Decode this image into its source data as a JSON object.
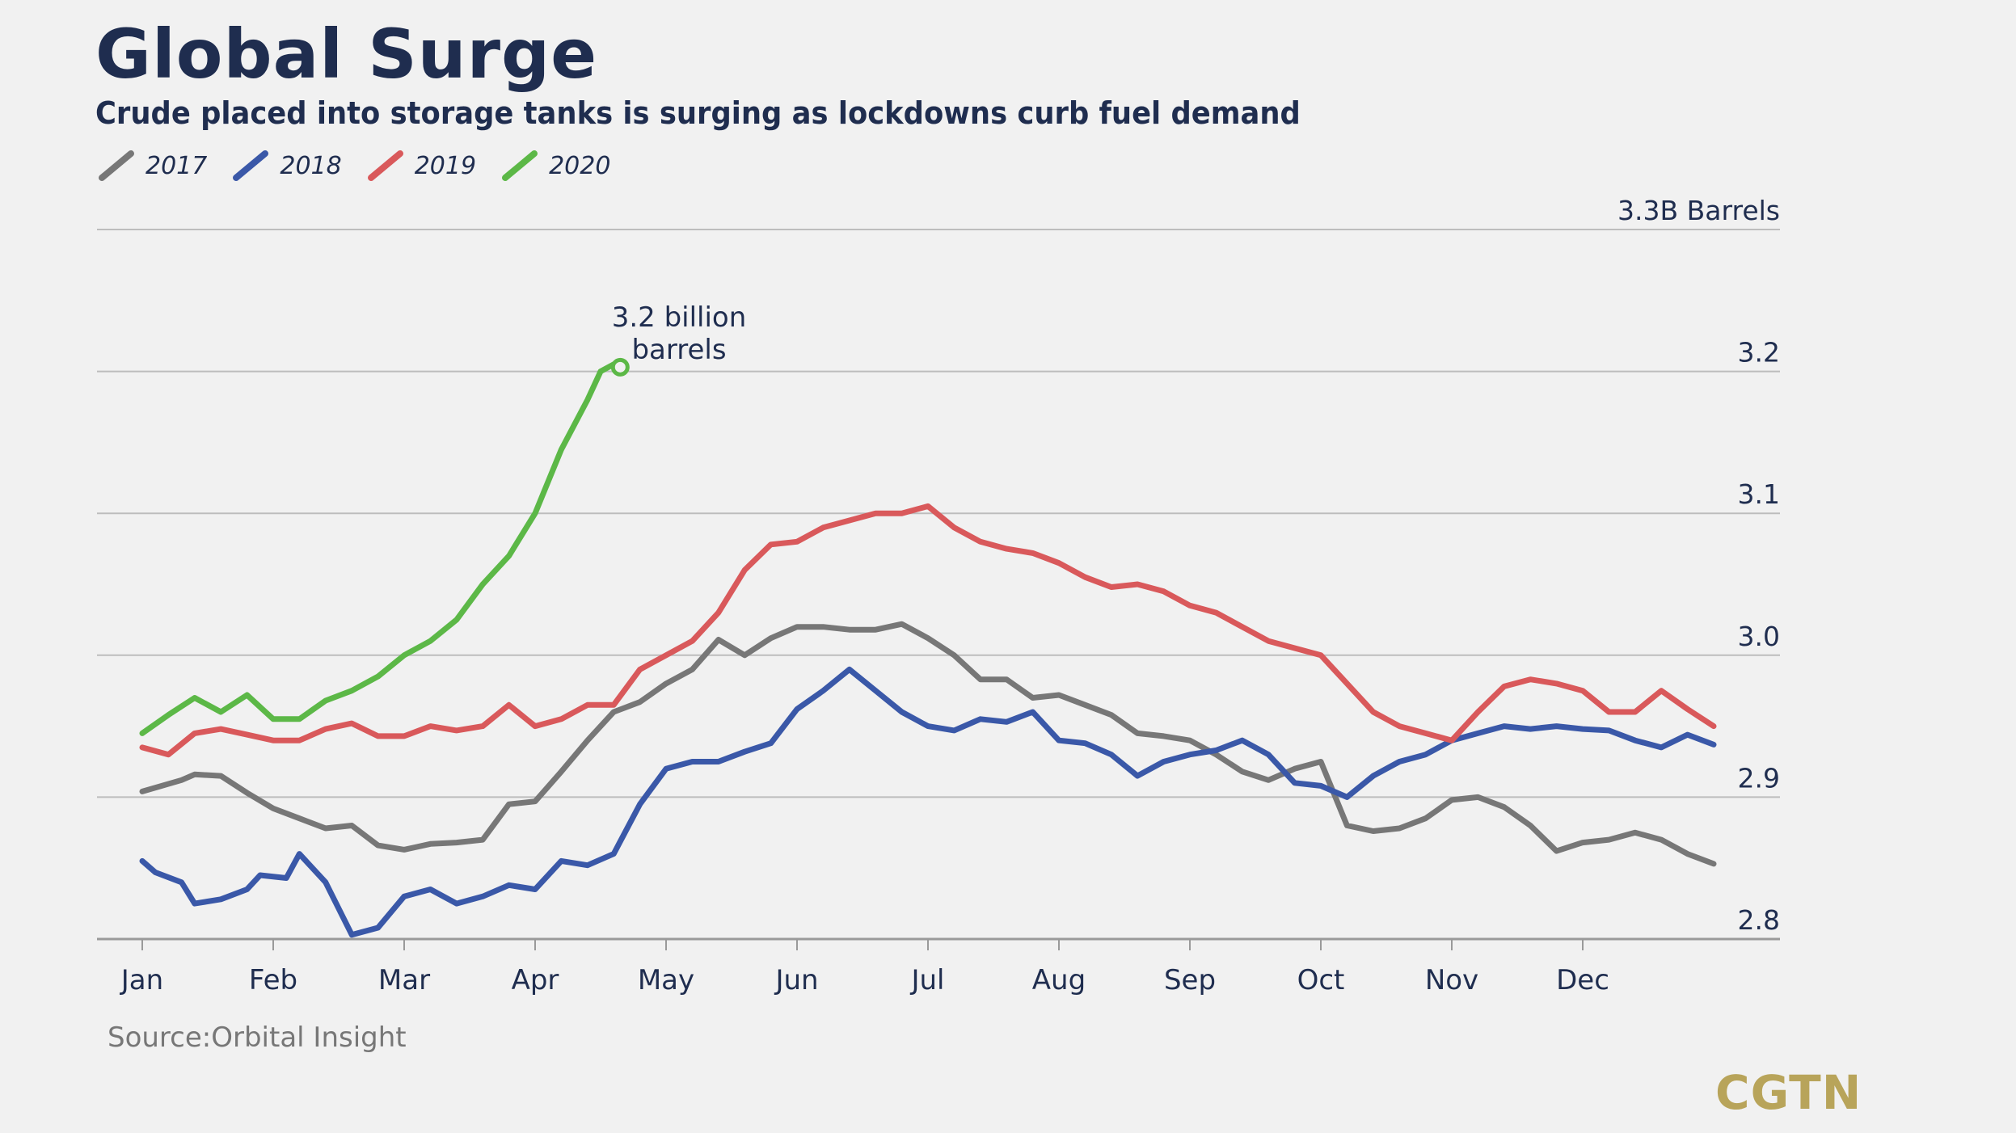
{
  "header": {
    "title": "Global Surge",
    "subtitle": "Crude placed into storage tanks is surging as lockdowns curb fuel demand"
  },
  "footer": {
    "source": "Source:Orbital Insight",
    "logo": "CGTN"
  },
  "chart_data": {
    "type": "line",
    "title": "Global Surge",
    "subtitle": "Crude placed into storage tanks is surging as lockdowns curb fuel demand",
    "xlabel": "",
    "ylabel": "",
    "x_tick_labels": [
      "Jan",
      "Feb",
      "Mar",
      "Apr",
      "May",
      "Jun",
      "Jul",
      "Aug",
      "Sep",
      "Oct",
      "Nov",
      "Dec"
    ],
    "y_ticks": [
      {
        "value": 3.3,
        "label": "3.3B Barrels"
      },
      {
        "value": 3.2,
        "label": "3.2"
      },
      {
        "value": 3.1,
        "label": "3.1"
      },
      {
        "value": 3.0,
        "label": "3.0"
      },
      {
        "value": 2.9,
        "label": "2.9"
      },
      {
        "value": 2.8,
        "label": "2.8"
      }
    ],
    "ylim": [
      2.8,
      3.3
    ],
    "xlim": [
      0,
      12.1
    ],
    "y_axis_position": "right",
    "grid": true,
    "legend_position": "top-left",
    "annotation": {
      "text_line1": "3.2 billion",
      "text_line2": "barrels",
      "x": 3.65,
      "y": 3.203
    },
    "series": [
      {
        "name": "2017",
        "color": "#777777",
        "x": [
          0,
          0.3,
          0.4,
          0.6,
          0.8,
          1.0,
          1.2,
          1.4,
          1.6,
          1.8,
          2.0,
          2.2,
          2.4,
          2.6,
          2.8,
          3.0,
          3.2,
          3.4,
          3.6,
          3.8,
          4.0,
          4.2,
          4.4,
          4.6,
          4.8,
          5.0,
          5.2,
          5.4,
          5.6,
          5.8,
          6.0,
          6.2,
          6.4,
          6.6,
          6.8,
          7.0,
          7.2,
          7.4,
          7.6,
          7.8,
          8.0,
          8.2,
          8.4,
          8.6,
          8.8,
          9.0,
          9.2,
          9.4,
          9.6,
          9.8,
          10.0,
          10.2,
          10.4,
          10.6,
          10.8,
          11.0,
          11.2,
          11.4,
          11.6,
          11.8,
          12.0
        ],
        "y": [
          2.904,
          2.912,
          2.916,
          2.915,
          2.903,
          2.892,
          2.885,
          2.878,
          2.88,
          2.866,
          2.863,
          2.867,
          2.868,
          2.87,
          2.895,
          2.897,
          2.918,
          2.94,
          2.96,
          2.967,
          2.98,
          2.99,
          3.011,
          3.0,
          3.012,
          3.02,
          3.02,
          3.018,
          3.018,
          3.022,
          3.012,
          3.0,
          2.983,
          2.983,
          2.97,
          2.972,
          2.965,
          2.958,
          2.945,
          2.943,
          2.94,
          2.93,
          2.918,
          2.912,
          2.92,
          2.925,
          2.88,
          2.876,
          2.878,
          2.885,
          2.898,
          2.9,
          2.893,
          2.88,
          2.862,
          2.868,
          2.87,
          2.875,
          2.87,
          2.86,
          2.853
        ]
      },
      {
        "name": "2018",
        "color": "#3a58a8",
        "x": [
          0,
          0.1,
          0.3,
          0.4,
          0.6,
          0.8,
          0.9,
          1.1,
          1.2,
          1.4,
          1.6,
          1.8,
          2.0,
          2.2,
          2.4,
          2.6,
          2.8,
          3.0,
          3.2,
          3.4,
          3.6,
          3.8,
          4.0,
          4.2,
          4.4,
          4.6,
          4.8,
          5.0,
          5.2,
          5.4,
          5.6,
          5.8,
          6.0,
          6.2,
          6.4,
          6.6,
          6.8,
          7.0,
          7.2,
          7.4,
          7.6,
          7.8,
          8.0,
          8.2,
          8.4,
          8.6,
          8.8,
          9.0,
          9.2,
          9.4,
          9.6,
          9.8,
          10.0,
          10.2,
          10.4,
          10.6,
          10.8,
          11.0,
          11.2,
          11.4,
          11.6,
          11.8,
          12.0
        ],
        "y": [
          2.855,
          2.847,
          2.84,
          2.825,
          2.828,
          2.835,
          2.845,
          2.843,
          2.86,
          2.84,
          2.803,
          2.808,
          2.83,
          2.835,
          2.825,
          2.83,
          2.838,
          2.835,
          2.855,
          2.852,
          2.86,
          2.895,
          2.92,
          2.925,
          2.925,
          2.932,
          2.938,
          2.962,
          2.975,
          2.99,
          2.975,
          2.96,
          2.95,
          2.947,
          2.955,
          2.953,
          2.96,
          2.94,
          2.938,
          2.93,
          2.915,
          2.925,
          2.93,
          2.933,
          2.94,
          2.93,
          2.91,
          2.908,
          2.9,
          2.915,
          2.925,
          2.93,
          2.94,
          2.945,
          2.95,
          2.948,
          2.95,
          2.948,
          2.947,
          2.94,
          2.935,
          2.944,
          2.937
        ]
      },
      {
        "name": "2019",
        "color": "#d9595b",
        "x": [
          0,
          0.2,
          0.4,
          0.6,
          0.8,
          1.0,
          1.2,
          1.4,
          1.6,
          1.8,
          2.0,
          2.2,
          2.4,
          2.6,
          2.8,
          3.0,
          3.2,
          3.4,
          3.6,
          3.8,
          4.0,
          4.2,
          4.4,
          4.6,
          4.8,
          5.0,
          5.2,
          5.4,
          5.6,
          5.8,
          6.0,
          6.2,
          6.4,
          6.6,
          6.8,
          7.0,
          7.2,
          7.4,
          7.6,
          7.8,
          8.0,
          8.2,
          8.4,
          8.6,
          8.8,
          9.0,
          9.2,
          9.4,
          9.6,
          9.8,
          10.0,
          10.2,
          10.4,
          10.6,
          10.8,
          11.0,
          11.2,
          11.4,
          11.6,
          11.8,
          12.0
        ],
        "y": [
          2.935,
          2.93,
          2.945,
          2.948,
          2.944,
          2.94,
          2.94,
          2.948,
          2.952,
          2.943,
          2.943,
          2.95,
          2.947,
          2.95,
          2.965,
          2.95,
          2.955,
          2.965,
          2.965,
          2.99,
          3.0,
          3.01,
          3.03,
          3.06,
          3.078,
          3.08,
          3.09,
          3.095,
          3.1,
          3.1,
          3.105,
          3.09,
          3.08,
          3.075,
          3.072,
          3.065,
          3.055,
          3.048,
          3.05,
          3.045,
          3.035,
          3.03,
          3.02,
          3.01,
          3.005,
          3.0,
          2.98,
          2.96,
          2.95,
          2.945,
          2.94,
          2.96,
          2.978,
          2.983,
          2.98,
          2.975,
          2.96,
          2.96,
          2.975,
          2.962,
          2.95
        ]
      },
      {
        "name": "2020",
        "color": "#5cb847",
        "x": [
          0,
          0.2,
          0.4,
          0.6,
          0.8,
          1.0,
          1.2,
          1.4,
          1.6,
          1.8,
          2.0,
          2.2,
          2.4,
          2.6,
          2.8,
          3.0,
          3.2,
          3.4,
          3.5,
          3.6,
          3.65
        ],
        "y": [
          2.945,
          2.958,
          2.97,
          2.96,
          2.972,
          2.955,
          2.955,
          2.968,
          2.975,
          2.985,
          3.0,
          3.01,
          3.025,
          3.05,
          3.07,
          3.1,
          3.145,
          3.18,
          3.2,
          3.205,
          3.203
        ]
      }
    ]
  }
}
